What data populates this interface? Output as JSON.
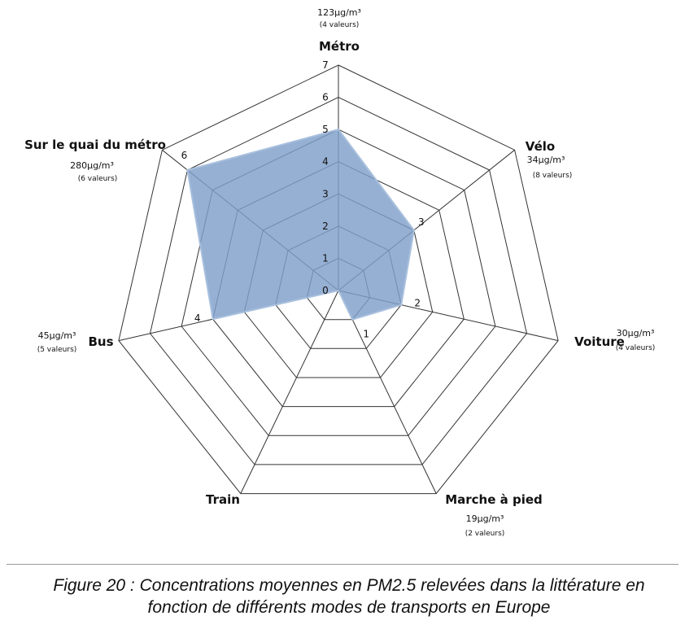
{
  "chart_data": {
    "type": "radar",
    "rmin": 0,
    "rmax": 7,
    "ticks": [
      "0",
      "1",
      "2",
      "3",
      "4",
      "5",
      "6",
      "7"
    ],
    "grid": true,
    "series_color": "#7f9fc9",
    "axes": [
      {
        "label": "Métro",
        "value": 5,
        "value_label": "5",
        "concentration": "123µg/m³",
        "count": "(4 valeurs)"
      },
      {
        "label": "Vélo",
        "value": 3,
        "value_label": "3",
        "concentration": "34µg/m³",
        "count": "(8 valeurs)"
      },
      {
        "label": "Voiture",
        "value": 2,
        "value_label": "2",
        "concentration": "30µg/m³",
        "count": "(4 valeurs)"
      },
      {
        "label": "Marche à pied",
        "value": 1,
        "value_label": "1",
        "concentration": "19µg/m³",
        "count": "(2 valeurs)"
      },
      {
        "label": "Train",
        "value": 0,
        "value_label": "",
        "concentration": "",
        "count": ""
      },
      {
        "label": "Bus",
        "value": 4,
        "value_label": "4",
        "concentration": "45µg/m³",
        "count": "(5 valeurs)"
      },
      {
        "label": "Sur le quai du métro",
        "value": 6,
        "value_label": "6",
        "concentration": "280µg/m³",
        "count": "(6 valeurs)"
      }
    ]
  },
  "caption": {
    "line1": "Figure 20 : Concentrations moyennes en PM2.5 relevées dans la littérature en",
    "line2": "fonction de différents modes de transports en Europe"
  }
}
